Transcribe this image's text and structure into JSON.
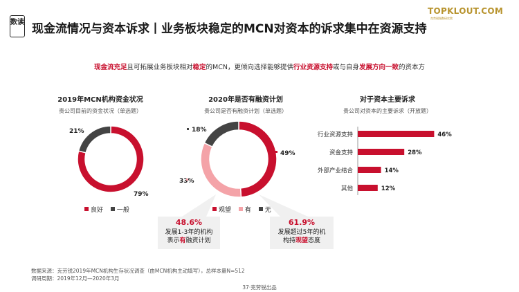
{
  "header": {
    "badge": "数读",
    "title": "现金流情况与资本诉求丨业务板块稳定的MCN对资本的诉求集中在资源支持",
    "logo": "TOPKLOUT.COM",
    "logo_sub": "克劳锐指数研究院"
  },
  "subtitle": {
    "p1": "现金流充足",
    "p2": "且可拓展业务板块相对",
    "p3": "稳定",
    "p4": "的MCN，更倾向选择能够提供",
    "p5": "行业资源支持",
    "p6": "或与自身",
    "p7": "发展方向一致",
    "p8": "的资本方"
  },
  "colors": {
    "red": "#c8102e",
    "pink": "#f4a3a8",
    "gray": "#444444",
    "callout_bg": "#f0f0f0"
  },
  "chart_data": [
    {
      "type": "pie",
      "title": "2019年MCN机构资金状况",
      "note": "贵公司目前的资金状况（单选题）",
      "categories": [
        "良好",
        "一般"
      ],
      "values": [
        79,
        21
      ],
      "labels": [
        "79%",
        "21%"
      ],
      "colors": [
        "#c8102e",
        "#444444"
      ],
      "legend": "bottom"
    },
    {
      "type": "pie",
      "title": "2020年是否有融资计划",
      "note": "贵公司是否有融资计划（单选题）",
      "categories": [
        "观望",
        "有",
        "无"
      ],
      "values": [
        49,
        33,
        18
      ],
      "labels": [
        "49%",
        "33%",
        "18%"
      ],
      "colors": [
        "#c8102e",
        "#f4a3a8",
        "#444444"
      ],
      "legend": "bottom"
    },
    {
      "type": "bar",
      "title": "对于资本主要诉求",
      "note": "贵公司对资本的主要诉求（开放题）",
      "categories": [
        "行业资源支持",
        "资金支持",
        "外部产业结合",
        "其他"
      ],
      "values": [
        46,
        28,
        14,
        12
      ],
      "labels": [
        "46%",
        "28%",
        "14%",
        "12%"
      ],
      "xlim": [
        0,
        50
      ]
    }
  ],
  "callouts": {
    "left": {
      "value": "48.6%",
      "line1": "发展1-3年的机构",
      "line2a": "表示",
      "line2b": "有",
      "line2c": "融资计划"
    },
    "right": {
      "value": "61.9%",
      "line1": "发展超过5年的机",
      "line2a": "构持",
      "line2b": "观望",
      "line2c": "态度"
    }
  },
  "footer": {
    "source": "数据来源：克劳锐2019年MCN机构生存状况调查（由MCN机构主动填写），总样本量N=512",
    "period": "调研周期：2019年12月—2020年3月",
    "page": "37·克劳锐出品"
  }
}
